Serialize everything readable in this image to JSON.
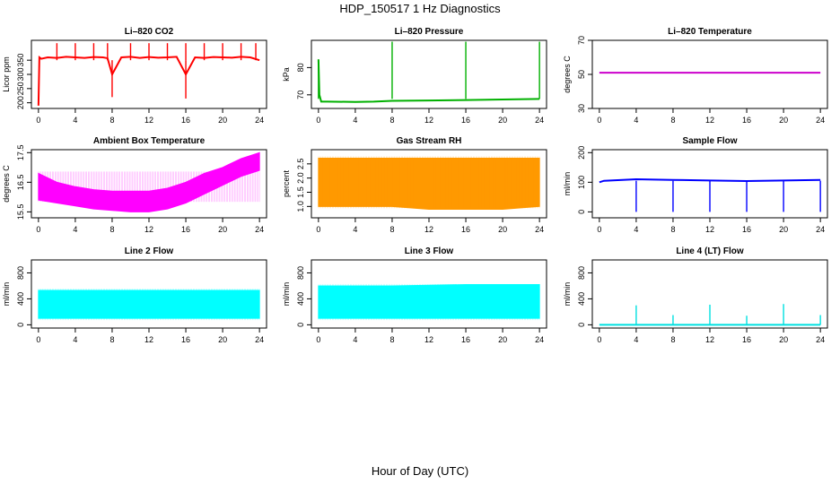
{
  "figure": {
    "title": "HDP_150517  1 Hz Diagnostics",
    "xlabel": "Hour of Day (UTC)"
  },
  "chart_data": [
    {
      "id": "co2",
      "type": "line",
      "title": "Li–820 CO2",
      "ylabel": "Licor ppm",
      "color": "#ff0000",
      "xlim": [
        0,
        24
      ],
      "ylim": [
        180,
        420
      ],
      "xticks": [
        "0",
        "4",
        "8",
        "12",
        "16",
        "20",
        "24"
      ],
      "yticks": [
        "200",
        "250",
        "300",
        "350"
      ],
      "series": [
        {
          "x": [
            0,
            0.1,
            0.3,
            1,
            2,
            3,
            4,
            5,
            6,
            7,
            7.5,
            8,
            9,
            10,
            11,
            12,
            13,
            14,
            15,
            16,
            17,
            18,
            19,
            20,
            21,
            22,
            23,
            24
          ],
          "values": [
            190,
            360,
            355,
            360,
            358,
            362,
            360,
            358,
            361,
            360,
            357,
            300,
            360,
            362,
            358,
            361,
            359,
            360,
            362,
            300,
            360,
            358,
            361,
            360,
            359,
            362,
            360,
            350
          ]
        }
      ],
      "spikes": [
        {
          "x": 2,
          "y": 410
        },
        {
          "x": 4,
          "y": 410
        },
        {
          "x": 6,
          "y": 410
        },
        {
          "x": 7.5,
          "y": 410
        },
        {
          "x": 10,
          "y": 410
        },
        {
          "x": 12,
          "y": 410
        },
        {
          "x": 14,
          "y": 410
        },
        {
          "x": 16,
          "y": 410
        },
        {
          "x": 18,
          "y": 410
        },
        {
          "x": 20,
          "y": 410
        },
        {
          "x": 22,
          "y": 410
        },
        {
          "x": 23.6,
          "y": 410
        },
        {
          "x": 8,
          "y": 220
        },
        {
          "x": 16,
          "y": 215
        }
      ]
    },
    {
      "id": "pressure",
      "type": "line",
      "title": "Li–820 Pressure",
      "ylabel": "kPa",
      "color": "#00b000",
      "xlim": [
        0,
        24
      ],
      "ylim": [
        65,
        90
      ],
      "xticks": [
        "0",
        "4",
        "8",
        "12",
        "16",
        "20",
        "24"
      ],
      "yticks": [
        "70",
        "80"
      ],
      "series": [
        {
          "x": [
            0,
            0.1,
            0.3,
            1,
            4,
            6,
            8,
            12,
            16,
            20,
            24
          ],
          "values": [
            83,
            70,
            67.5,
            67.5,
            67.4,
            67.5,
            67.8,
            67.9,
            68.1,
            68.3,
            68.5
          ]
        }
      ],
      "spikes": [
        {
          "x": 0,
          "y": 83
        },
        {
          "x": 8,
          "y": 89.5
        },
        {
          "x": 16,
          "y": 89.5
        },
        {
          "x": 24,
          "y": 89.5
        }
      ]
    },
    {
      "id": "temperature",
      "type": "line",
      "title": "Li–820 Temperature",
      "ylabel": "degrees C",
      "color": "#cc00cc",
      "xlim": [
        0,
        24
      ],
      "ylim": [
        30,
        70
      ],
      "xticks": [
        "0",
        "4",
        "8",
        "12",
        "16",
        "20",
        "24"
      ],
      "yticks": [
        "30",
        "50",
        "70"
      ],
      "series": [
        {
          "x": [
            0,
            24
          ],
          "values": [
            51,
            51
          ]
        }
      ]
    },
    {
      "id": "ambient",
      "type": "area",
      "title": "Ambient Box Temperature",
      "ylabel": "degrees C",
      "color": "#ff00ff",
      "xlim": [
        0,
        24
      ],
      "ylim": [
        15.3,
        17.6
      ],
      "xticks": [
        "0",
        "4",
        "8",
        "12",
        "16",
        "20",
        "24"
      ],
      "yticks": [
        "15.5",
        "16.5",
        "17.5"
      ],
      "series": [
        {
          "name": "high",
          "x": [
            0,
            2,
            4,
            6,
            8,
            10,
            12,
            14,
            16,
            18,
            20,
            22,
            24
          ],
          "values": [
            16.8,
            16.5,
            16.35,
            16.25,
            16.2,
            16.2,
            16.2,
            16.3,
            16.5,
            16.8,
            17.0,
            17.3,
            17.5
          ]
        },
        {
          "name": "low",
          "x": [
            0,
            2,
            4,
            6,
            8,
            10,
            12,
            14,
            16,
            18,
            20,
            22,
            24
          ],
          "values": [
            15.9,
            15.8,
            15.7,
            15.6,
            15.55,
            15.5,
            15.5,
            15.6,
            15.8,
            16.1,
            16.4,
            16.7,
            16.9
          ]
        }
      ]
    },
    {
      "id": "rh",
      "type": "area",
      "title": "Gas Stream RH",
      "ylabel": "percent",
      "color": "#ff9900",
      "xlim": [
        0,
        24
      ],
      "ylim": [
        0.6,
        3.0
      ],
      "xticks": [
        "0",
        "4",
        "8",
        "12",
        "16",
        "20",
        "24"
      ],
      "yticks": [
        "1.0",
        "1.5",
        "2.0",
        "2.5"
      ],
      "series": [
        {
          "name": "high",
          "x": [
            0,
            4,
            8,
            12,
            16,
            20,
            24
          ],
          "values": [
            2.7,
            2.7,
            2.7,
            2.7,
            2.7,
            2.7,
            2.7
          ]
        },
        {
          "name": "low",
          "x": [
            0,
            4,
            8,
            12,
            16,
            20,
            24
          ],
          "values": [
            1.0,
            1.0,
            1.0,
            0.9,
            0.9,
            0.9,
            1.0
          ]
        }
      ]
    },
    {
      "id": "sample",
      "type": "line",
      "title": "Sample Flow",
      "ylabel": "ml/min",
      "color": "#0000ff",
      "xlim": [
        0,
        24
      ],
      "ylim": [
        -20,
        210
      ],
      "xticks": [
        "0",
        "4",
        "8",
        "12",
        "16",
        "20",
        "24"
      ],
      "yticks": [
        "0",
        "100",
        "200"
      ],
      "series": [
        {
          "x": [
            0,
            0.5,
            4,
            8,
            12,
            16,
            20,
            24
          ],
          "values": [
            100,
            105,
            110,
            108,
            106,
            104,
            106,
            108
          ]
        }
      ],
      "dips": [
        {
          "x": 4,
          "y": 0
        },
        {
          "x": 8,
          "y": 0
        },
        {
          "x": 12,
          "y": 0
        },
        {
          "x": 16,
          "y": 0
        },
        {
          "x": 20,
          "y": 0
        },
        {
          "x": 24,
          "y": 0
        }
      ]
    },
    {
      "id": "line2",
      "type": "area",
      "title": "Line 2 Flow",
      "ylabel": "ml/min",
      "color": "#00ffff",
      "xlim": [
        0,
        24
      ],
      "ylim": [
        -50,
        1000
      ],
      "xticks": [
        "0",
        "4",
        "8",
        "12",
        "16",
        "20",
        "24"
      ],
      "yticks": [
        "0",
        "400",
        "800"
      ],
      "series": [
        {
          "name": "high",
          "x": [
            0,
            24
          ],
          "values": [
            530,
            530
          ]
        },
        {
          "name": "low",
          "x": [
            0,
            24
          ],
          "values": [
            100,
            100
          ]
        }
      ]
    },
    {
      "id": "line3",
      "type": "area",
      "title": "Line 3 Flow",
      "ylabel": "ml/min",
      "color": "#00ffff",
      "xlim": [
        0,
        24
      ],
      "ylim": [
        -50,
        1000
      ],
      "xticks": [
        "0",
        "4",
        "8",
        "12",
        "16",
        "20",
        "24"
      ],
      "yticks": [
        "0",
        "400",
        "800"
      ],
      "series": [
        {
          "name": "high",
          "x": [
            0,
            4,
            8,
            12,
            16,
            20,
            24
          ],
          "values": [
            600,
            600,
            600,
            610,
            620,
            620,
            620
          ]
        },
        {
          "name": "low",
          "x": [
            0,
            24
          ],
          "values": [
            100,
            100
          ]
        }
      ]
    },
    {
      "id": "line4",
      "type": "line",
      "title": "Line 4 (LT) Flow",
      "ylabel": "ml/min",
      "color": "#00e0e0",
      "xlim": [
        0,
        24
      ],
      "ylim": [
        -50,
        1000
      ],
      "xticks": [
        "0",
        "4",
        "8",
        "12",
        "16",
        "20",
        "24"
      ],
      "yticks": [
        "0",
        "400",
        "800"
      ],
      "series": [
        {
          "x": [
            0,
            24
          ],
          "values": [
            0,
            0
          ]
        }
      ],
      "spikes": [
        {
          "x": 4,
          "y": 300
        },
        {
          "x": 8,
          "y": 150
        },
        {
          "x": 12,
          "y": 310
        },
        {
          "x": 16,
          "y": 140
        },
        {
          "x": 20,
          "y": 320
        },
        {
          "x": 24,
          "y": 150
        }
      ]
    }
  ]
}
